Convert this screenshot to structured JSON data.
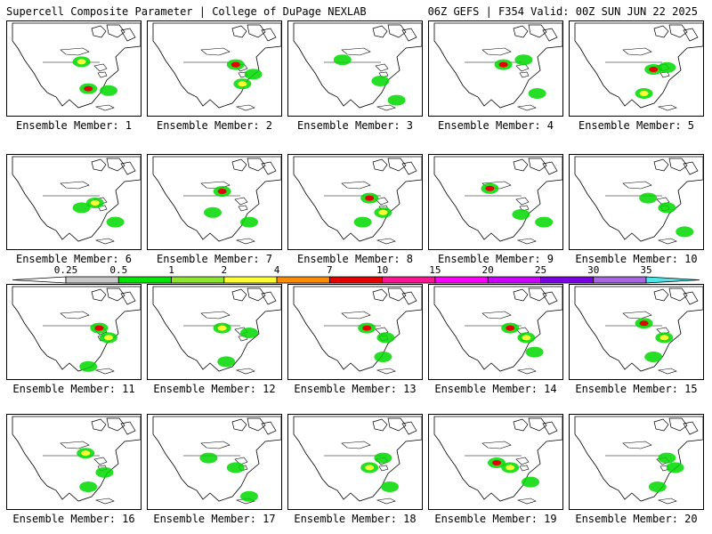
{
  "header": {
    "left": "Supercell Composite Parameter | College of DuPage NEXLAB",
    "right": "06Z GEFS | F354 Valid: 00Z SUN JUN 22 2025"
  },
  "colorbar": {
    "labels": [
      "0.25",
      "0.5",
      "1",
      "2",
      "4",
      "7",
      "10",
      "15",
      "20",
      "25",
      "30",
      "35"
    ],
    "colors": [
      "#c8c8c8",
      "#00e600",
      "#8ce62e",
      "#ffff32",
      "#ff8c00",
      "#e60000",
      "#ff1493",
      "#ff00ff",
      "#cc00ff",
      "#7b00e6",
      "#a666e0",
      "#4de6e6"
    ]
  },
  "panels": [
    {
      "label": "Ensemble Member: 1",
      "blobs": [
        [
          0.55,
          0.42,
          "y"
        ],
        [
          0.6,
          0.7,
          "r"
        ],
        [
          0.75,
          0.72,
          "g"
        ]
      ]
    },
    {
      "label": "Ensemble Member: 2",
      "blobs": [
        [
          0.65,
          0.45,
          "r"
        ],
        [
          0.7,
          0.65,
          "y"
        ],
        [
          0.78,
          0.55,
          "g"
        ]
      ]
    },
    {
      "label": "Ensemble Member: 3",
      "blobs": [
        [
          0.4,
          0.4,
          "g"
        ],
        [
          0.68,
          0.62,
          "g"
        ],
        [
          0.8,
          0.82,
          "g"
        ]
      ]
    },
    {
      "label": "Ensemble Member: 4",
      "blobs": [
        [
          0.55,
          0.45,
          "r"
        ],
        [
          0.7,
          0.4,
          "g"
        ],
        [
          0.8,
          0.75,
          "g"
        ]
      ]
    },
    {
      "label": "Ensemble Member: 5",
      "blobs": [
        [
          0.62,
          0.5,
          "r"
        ],
        [
          0.72,
          0.48,
          "g"
        ],
        [
          0.55,
          0.75,
          "y"
        ]
      ]
    },
    {
      "label": "Ensemble Member: 6",
      "blobs": [
        [
          0.55,
          0.55,
          "g"
        ],
        [
          0.65,
          0.5,
          "y"
        ],
        [
          0.8,
          0.7,
          "g"
        ]
      ]
    },
    {
      "label": "Ensemble Member: 7",
      "blobs": [
        [
          0.55,
          0.38,
          "r"
        ],
        [
          0.48,
          0.6,
          "g"
        ],
        [
          0.75,
          0.7,
          "g"
        ]
      ]
    },
    {
      "label": "Ensemble Member: 8",
      "blobs": [
        [
          0.6,
          0.45,
          "r"
        ],
        [
          0.7,
          0.6,
          "y"
        ],
        [
          0.55,
          0.7,
          "g"
        ]
      ]
    },
    {
      "label": "Ensemble Member: 9",
      "blobs": [
        [
          0.45,
          0.35,
          "r"
        ],
        [
          0.68,
          0.62,
          "g"
        ],
        [
          0.85,
          0.7,
          "g"
        ]
      ]
    },
    {
      "label": "Ensemble Member: 10",
      "blobs": [
        [
          0.58,
          0.45,
          "g"
        ],
        [
          0.72,
          0.55,
          "g"
        ],
        [
          0.85,
          0.8,
          "g"
        ]
      ]
    },
    {
      "label": "Ensemble Member: 11",
      "blobs": [
        [
          0.68,
          0.45,
          "r"
        ],
        [
          0.75,
          0.55,
          "y"
        ],
        [
          0.6,
          0.85,
          "g"
        ]
      ]
    },
    {
      "label": "Ensemble Member: 12",
      "blobs": [
        [
          0.55,
          0.45,
          "y"
        ],
        [
          0.75,
          0.5,
          "g"
        ],
        [
          0.58,
          0.8,
          "g"
        ]
      ]
    },
    {
      "label": "Ensemble Member: 13",
      "blobs": [
        [
          0.58,
          0.45,
          "r"
        ],
        [
          0.72,
          0.55,
          "g"
        ],
        [
          0.7,
          0.75,
          "g"
        ]
      ]
    },
    {
      "label": "Ensemble Member: 14",
      "blobs": [
        [
          0.6,
          0.45,
          "r"
        ],
        [
          0.72,
          0.55,
          "y"
        ],
        [
          0.78,
          0.7,
          "g"
        ]
      ]
    },
    {
      "label": "Ensemble Member: 15",
      "blobs": [
        [
          0.55,
          0.4,
          "r"
        ],
        [
          0.7,
          0.55,
          "y"
        ],
        [
          0.62,
          0.75,
          "g"
        ]
      ]
    },
    {
      "label": "Ensemble Member: 16",
      "blobs": [
        [
          0.58,
          0.4,
          "y"
        ],
        [
          0.72,
          0.6,
          "g"
        ],
        [
          0.6,
          0.75,
          "g"
        ]
      ]
    },
    {
      "label": "Ensemble Member: 17",
      "blobs": [
        [
          0.45,
          0.45,
          "g"
        ],
        [
          0.65,
          0.55,
          "g"
        ],
        [
          0.75,
          0.85,
          "g"
        ]
      ]
    },
    {
      "label": "Ensemble Member: 18",
      "blobs": [
        [
          0.6,
          0.55,
          "y"
        ],
        [
          0.7,
          0.45,
          "g"
        ],
        [
          0.75,
          0.75,
          "g"
        ]
      ]
    },
    {
      "label": "Ensemble Member: 19",
      "blobs": [
        [
          0.5,
          0.5,
          "r"
        ],
        [
          0.6,
          0.55,
          "y"
        ],
        [
          0.75,
          0.7,
          "g"
        ]
      ]
    },
    {
      "label": "Ensemble Member: 20",
      "blobs": [
        [
          0.72,
          0.45,
          "g"
        ],
        [
          0.78,
          0.55,
          "g"
        ],
        [
          0.65,
          0.75,
          "g"
        ]
      ]
    }
  ]
}
